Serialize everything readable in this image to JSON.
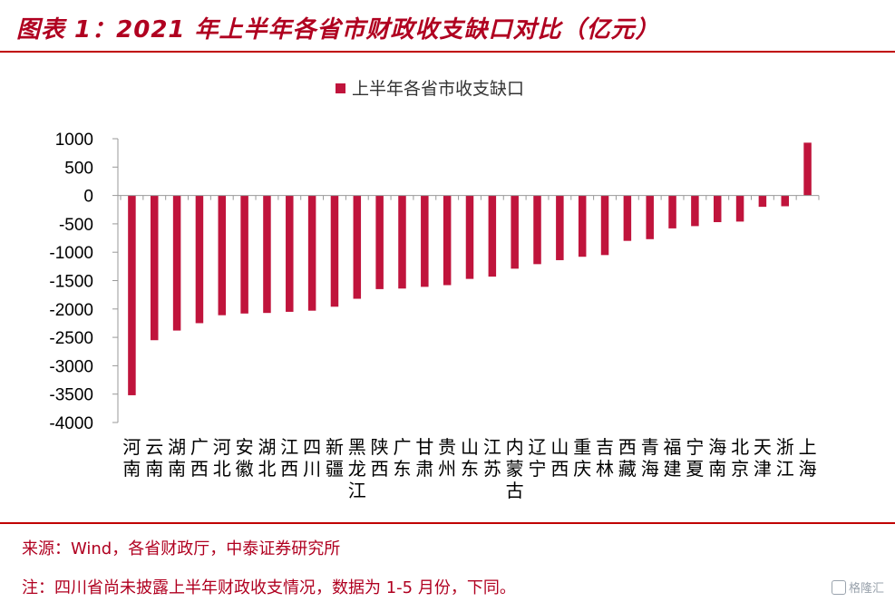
{
  "header": {
    "title": "图表 1：2021 年上半年各省市财政收支缺口对比（亿元）"
  },
  "footer": {
    "source": "来源：Wind，各省财政厅，中泰证券研究所",
    "note": "注：四川省尚未披露上半年财政收支情况，数据为 1-5 月份，下同。",
    "watermark": "格隆汇"
  },
  "colors": {
    "accent": "#c00000",
    "bar": "#c0143c"
  },
  "chart_data": {
    "type": "bar",
    "title": "",
    "legend": {
      "position": "top-center",
      "entries": [
        "上半年各省市收支缺口"
      ]
    },
    "xlabel": "",
    "ylabel": "",
    "ylim": [
      -4000,
      1000
    ],
    "yticks": [
      1000,
      500,
      0,
      -500,
      -1000,
      -1500,
      -2000,
      -2500,
      -3000,
      -3500,
      -4000
    ],
    "grid": false,
    "categories": [
      "河南",
      "云南",
      "湖南",
      "广西",
      "河北",
      "安徽",
      "湖北",
      "江西",
      "四川",
      "新疆",
      "黑龙江",
      "陕西",
      "广东",
      "甘肃",
      "贵州",
      "山东",
      "江苏",
      "内蒙古",
      "辽宁",
      "山西",
      "重庆",
      "吉林",
      "西藏",
      "青海",
      "福建",
      "宁夏",
      "海南",
      "北京",
      "天津",
      "浙江",
      "上海"
    ],
    "series": [
      {
        "name": "上半年各省市收支缺口",
        "values": [
          -3520,
          -2550,
          -2380,
          -2250,
          -2110,
          -2080,
          -2070,
          -2050,
          -2030,
          -1960,
          -1820,
          -1650,
          -1640,
          -1610,
          -1580,
          -1470,
          -1430,
          -1290,
          -1210,
          -1140,
          -1080,
          -1050,
          -800,
          -770,
          -580,
          -540,
          -470,
          -460,
          -200,
          -190,
          930
        ]
      }
    ]
  }
}
